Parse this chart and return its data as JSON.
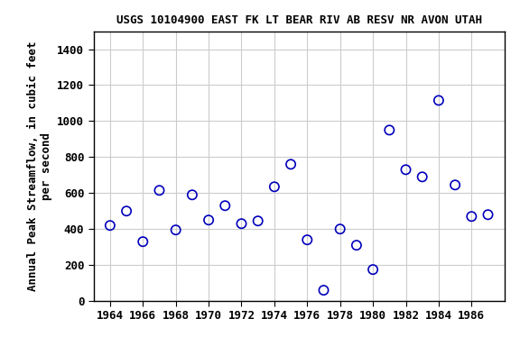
{
  "title": "USGS 10104900 EAST FK LT BEAR RIV AB RESV NR AVON UTAH",
  "ylabel_line1": "Annual Peak Streamflow, in cubic feet",
  "ylabel_line2": "per second",
  "years": [
    1964,
    1965,
    1966,
    1967,
    1968,
    1969,
    1970,
    1971,
    1972,
    1973,
    1974,
    1975,
    1976,
    1977,
    1978,
    1979,
    1980,
    1981,
    1982,
    1983,
    1984,
    1985,
    1986,
    1987
  ],
  "values": [
    420,
    500,
    330,
    615,
    395,
    590,
    450,
    530,
    430,
    445,
    635,
    760,
    340,
    60,
    400,
    310,
    175,
    950,
    730,
    690,
    1115,
    645,
    470,
    480
  ],
  "marker_color": "#0000BB",
  "marker_size": 55,
  "marker_lw": 1.2,
  "xlim": [
    1963.0,
    1988.0
  ],
  "ylim": [
    0,
    1500
  ],
  "xticks": [
    1964,
    1966,
    1968,
    1970,
    1972,
    1974,
    1976,
    1978,
    1980,
    1982,
    1984,
    1986
  ],
  "yticks": [
    0,
    200,
    400,
    600,
    800,
    1000,
    1200,
    1400
  ],
  "grid_color": "#cccccc",
  "background_color": "#ffffff",
  "title_fontsize": 9,
  "label_fontsize": 9,
  "tick_fontsize": 9
}
